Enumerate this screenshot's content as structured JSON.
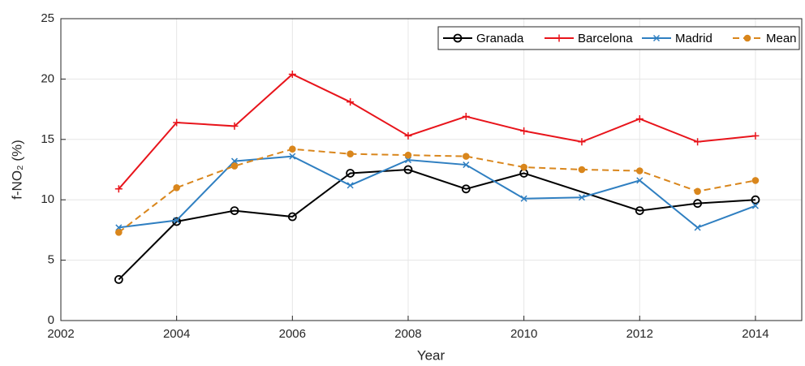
{
  "chart_data": {
    "type": "line",
    "x_label": "Year",
    "y_label": "f-NO₂ (%)",
    "xlim": [
      2002,
      2014.8
    ],
    "xticks": [
      2002,
      2004,
      2006,
      2008,
      2010,
      2012,
      2014
    ],
    "ylim": [
      0,
      25
    ],
    "yticks": [
      0,
      5,
      10,
      15,
      20,
      25
    ],
    "grid": true,
    "legend": "top-right",
    "series": [
      {
        "name": "Granada",
        "color": "#000000",
        "marker": "circle",
        "dash": false,
        "x": [
          2003,
          2004,
          2005,
          2006,
          2007,
          2008,
          2009,
          2010,
          2012,
          2013,
          2014
        ],
        "values": [
          3.4,
          8.2,
          9.1,
          8.6,
          12.2,
          12.5,
          10.9,
          12.2,
          9.1,
          9.7,
          10.0
        ]
      },
      {
        "name": "Barcelona",
        "color": "#e8141b",
        "marker": "plus",
        "dash": false,
        "x": [
          2003,
          2004,
          2005,
          2006,
          2007,
          2008,
          2009,
          2010,
          2011,
          2012,
          2013,
          2014
        ],
        "values": [
          10.9,
          16.4,
          16.1,
          20.4,
          18.1,
          15.3,
          16.9,
          15.7,
          14.8,
          16.7,
          14.8,
          15.3
        ]
      },
      {
        "name": "Madrid",
        "color": "#2f7fc1",
        "marker": "cross",
        "dash": false,
        "x": [
          2003,
          2004,
          2005,
          2006,
          2007,
          2008,
          2009,
          2010,
          2011,
          2012,
          2013,
          2014
        ],
        "values": [
          7.7,
          8.3,
          13.2,
          13.6,
          11.2,
          13.3,
          12.9,
          10.1,
          10.2,
          11.6,
          7.7,
          9.5
        ]
      },
      {
        "name": "Mean",
        "color": "#d9861c",
        "marker": "dot",
        "dash": true,
        "x": [
          2003,
          2004,
          2005,
          2006,
          2007,
          2008,
          2009,
          2010,
          2011,
          2012,
          2013,
          2014
        ],
        "values": [
          7.3,
          11.0,
          12.8,
          14.2,
          13.8,
          13.7,
          13.6,
          12.7,
          12.5,
          12.4,
          10.7,
          11.6
        ]
      }
    ]
  }
}
